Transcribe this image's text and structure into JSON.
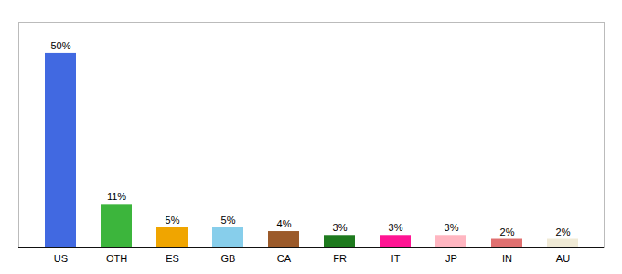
{
  "chart_data": {
    "type": "bar",
    "categories": [
      "US",
      "OTH",
      "ES",
      "GB",
      "CA",
      "FR",
      "IT",
      "JP",
      "IN",
      "AU"
    ],
    "values": [
      50,
      11,
      5,
      5,
      4,
      3,
      3,
      3,
      2,
      2
    ],
    "value_labels": [
      "50%",
      "11%",
      "5%",
      "5%",
      "4%",
      "3%",
      "3%",
      "3%",
      "2%",
      "2%"
    ],
    "colors": [
      "#4169e1",
      "#3cb53c",
      "#f0a500",
      "#87ceeb",
      "#9b5a2a",
      "#1e7a1e",
      "#ff1493",
      "#ffb6c1",
      "#e07070",
      "#f0ead6"
    ],
    "ylim": [
      0,
      58
    ],
    "data_labels": true,
    "tick_labels": "x"
  }
}
